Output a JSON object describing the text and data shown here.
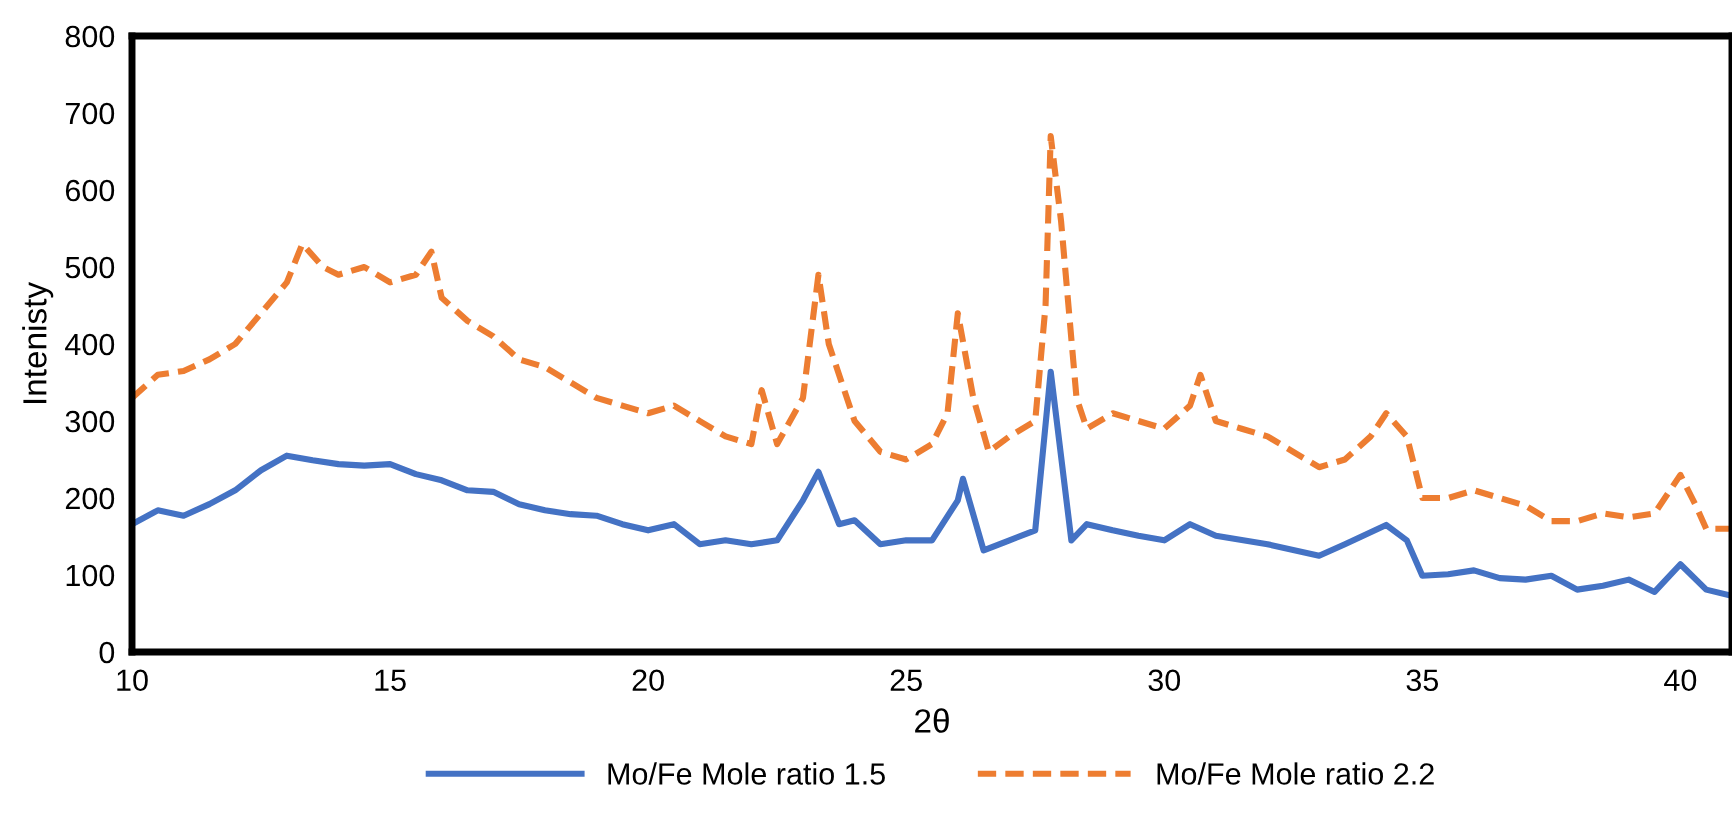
{
  "chart_data": {
    "type": "line",
    "xlabel": "2θ",
    "ylabel": "Intenisty",
    "xlim": [
      10,
      41
    ],
    "xticks": [
      10,
      15,
      20,
      25,
      30,
      35,
      40
    ],
    "ylim": [
      0,
      800
    ],
    "yticks": [
      0,
      100,
      200,
      300,
      400,
      500,
      600,
      700,
      800
    ],
    "grid": false,
    "legend": "bottom",
    "marker": "none",
    "series": [
      {
        "name": "Mo/Fe Mole ratio 1.5",
        "color": "#4472c4",
        "line_style": "solid",
        "x": [
          10,
          10.5,
          11,
          11.5,
          12,
          12.5,
          13,
          13.5,
          14,
          14.5,
          15,
          15.5,
          16,
          16.5,
          17,
          17.5,
          18,
          18.5,
          19,
          19.5,
          20,
          20.5,
          21,
          21.5,
          22,
          22.5,
          23,
          23.3,
          23.7,
          24,
          24.5,
          25,
          25.5,
          26,
          26.1,
          26.5,
          27,
          27.5,
          27.8,
          28.2,
          28.5,
          29,
          29.5,
          30,
          30.5,
          31,
          32,
          33,
          33.5,
          34.3,
          34.7,
          35,
          35.5,
          36,
          36.5,
          37,
          37.5,
          38,
          38.5,
          39,
          39.5,
          40,
          40.5,
          41
        ],
        "values": [
          166,
          184,
          177,
          192,
          210,
          236,
          255,
          249,
          244,
          242,
          244,
          231,
          223,
          210,
          208,
          192,
          184,
          179,
          177,
          166,
          158,
          166,
          140,
          145,
          140,
          145,
          197,
          234,
          166,
          171,
          140,
          145,
          145,
          197,
          225,
          132,
          145,
          158,
          364,
          145,
          166,
          158,
          151,
          145,
          166,
          151,
          140,
          125,
          140,
          165,
          145,
          99,
          101,
          106,
          96,
          94,
          99,
          81,
          86,
          94,
          78,
          114,
          81,
          73
        ]
      },
      {
        "name": "Mo/Fe Mole ratio 2.2",
        "color": "#ed7d31",
        "line_style": "dashed",
        "x": [
          10,
          10.5,
          11,
          11.5,
          12,
          12.5,
          13,
          13.3,
          13.7,
          14,
          14.5,
          15,
          15.5,
          15.8,
          16,
          16.5,
          17,
          17.5,
          18,
          18.5,
          19,
          19.5,
          20,
          20.5,
          21,
          21.5,
          22,
          22.2,
          22.5,
          23,
          23.3,
          23.5,
          24,
          24.5,
          25,
          25.5,
          25.8,
          26,
          26.3,
          26.6,
          27,
          27.5,
          27.7,
          27.8,
          28,
          28.3,
          28.5,
          29,
          29.5,
          30,
          30.5,
          30.7,
          31,
          31.5,
          32,
          32.5,
          33,
          33.5,
          34,
          34.3,
          34.7,
          35,
          35.5,
          36,
          36.5,
          37,
          37.5,
          38,
          38.5,
          39,
          39.5,
          40,
          40.3,
          40.5,
          41
        ],
        "values": [
          330,
          360,
          365,
          380,
          400,
          440,
          480,
          530,
          500,
          490,
          500,
          480,
          490,
          520,
          460,
          430,
          410,
          380,
          370,
          350,
          330,
          320,
          310,
          320,
          300,
          280,
          270,
          340,
          270,
          330,
          490,
          400,
          300,
          260,
          250,
          270,
          310,
          440,
          330,
          260,
          280,
          300,
          450,
          670,
          560,
          330,
          290,
          310,
          300,
          290,
          320,
          360,
          300,
          290,
          280,
          260,
          240,
          250,
          280,
          310,
          280,
          200,
          200,
          210,
          200,
          190,
          170,
          170,
          180,
          175,
          180,
          230,
          190,
          160,
          160
        ]
      }
    ]
  }
}
